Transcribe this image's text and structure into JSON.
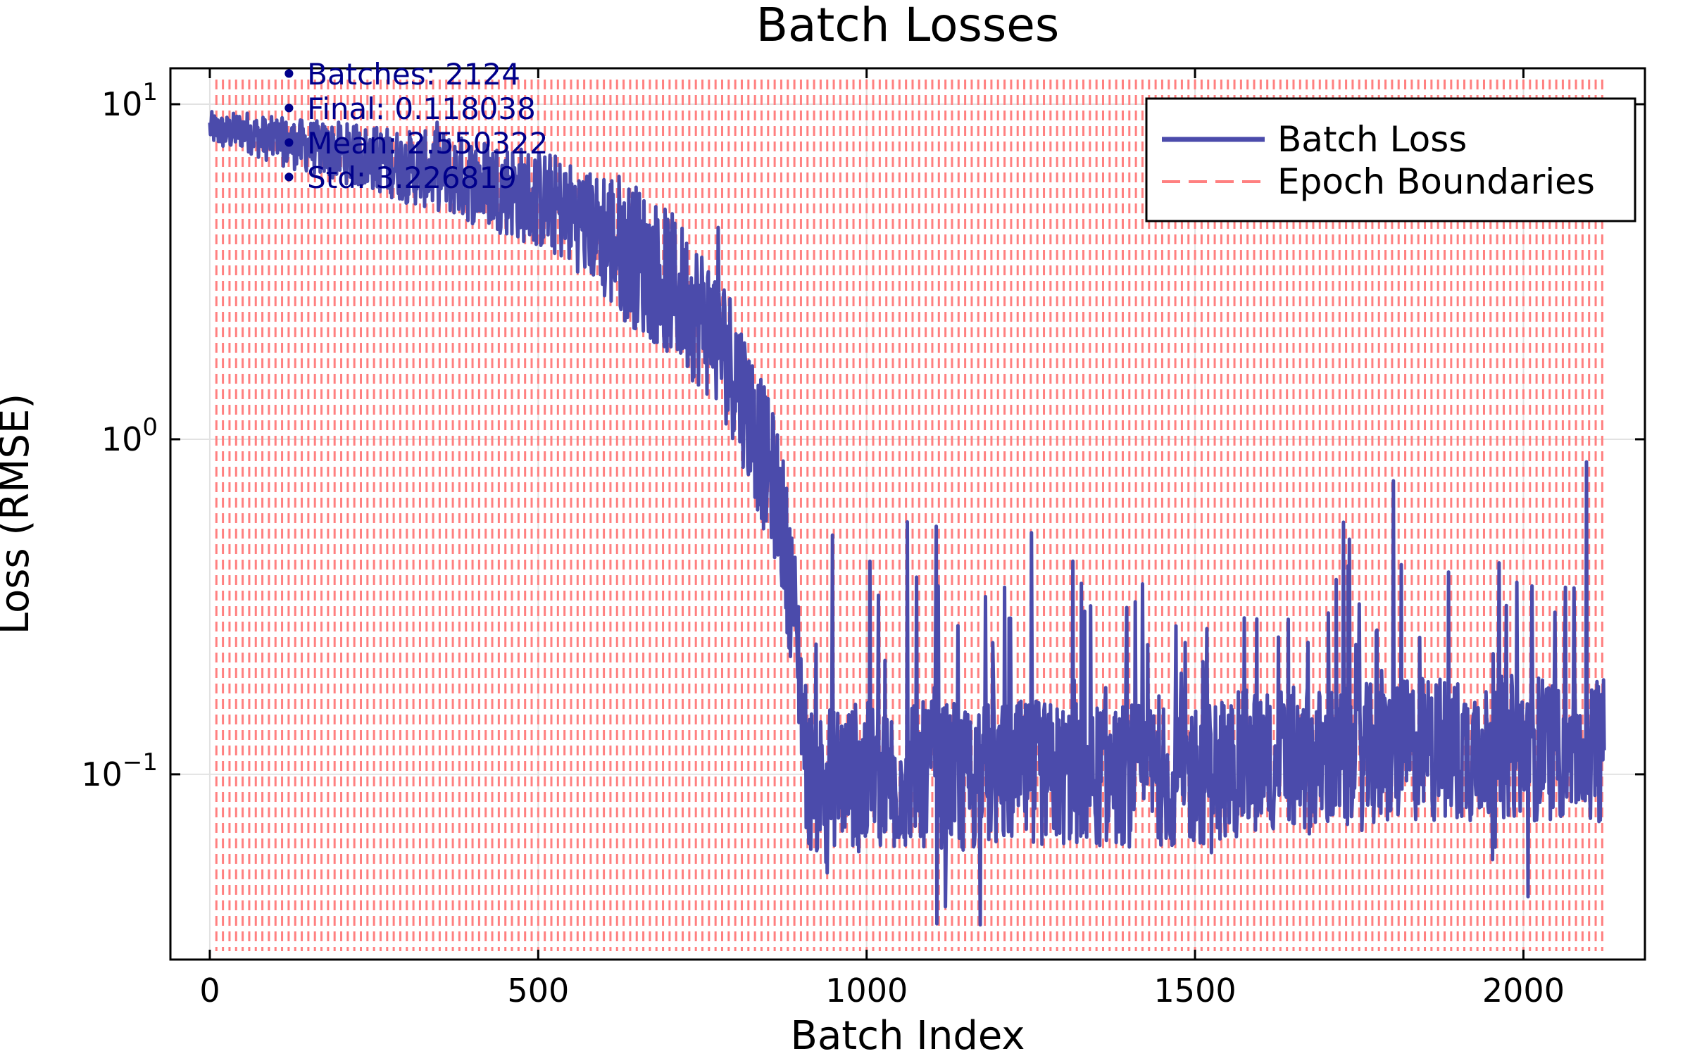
{
  "chart_data": {
    "type": "line",
    "title": "Batch Losses",
    "xlabel": "Batch Index",
    "ylabel": "Loss (RMSE)",
    "xlim": [
      -60,
      2185
    ],
    "ylim": [
      0.028,
      12.8
    ],
    "yscale": "log",
    "grid": true,
    "legend_position": "top-right",
    "x_ticks": [
      {
        "value": 0,
        "label": "0"
      },
      {
        "value": 500,
        "label": "500"
      },
      {
        "value": 1000,
        "label": "1000"
      },
      {
        "value": 1500,
        "label": "1500"
      },
      {
        "value": 2000,
        "label": "2000"
      }
    ],
    "y_ticks": [
      {
        "value": 10,
        "base": "10",
        "exp": "1"
      },
      {
        "value": 1,
        "base": "10",
        "exp": "0"
      },
      {
        "value": 0.1,
        "base": "10",
        "exp": "−1"
      }
    ],
    "series": [
      {
        "name": "Batch Loss",
        "color": "#4b4bab",
        "style": "solid",
        "total_points": 2124,
        "x": [
          0,
          25,
          50,
          75,
          100,
          125,
          150,
          175,
          200,
          225,
          250,
          275,
          300,
          325,
          350,
          375,
          400,
          425,
          450,
          475,
          500,
          525,
          550,
          575,
          600,
          625,
          650,
          675,
          700,
          725,
          750,
          775,
          800,
          825,
          850,
          860,
          870,
          875,
          880,
          885,
          890,
          895,
          900,
          905,
          910,
          920,
          950,
          1000,
          1050,
          1100,
          1150,
          1200,
          1250,
          1300,
          1350,
          1400,
          1450,
          1500,
          1550,
          1600,
          1650,
          1700,
          1750,
          1800,
          1850,
          1900,
          1950,
          2000,
          2050,
          2100,
          2123
        ],
        "y": [
          8.5,
          8.2,
          8.4,
          8.0,
          7.8,
          7.6,
          7.5,
          7.3,
          7.2,
          7.0,
          6.9,
          6.7,
          6.5,
          6.4,
          6.3,
          6.1,
          5.9,
          5.8,
          5.6,
          5.4,
          5.2,
          5.0,
          4.7,
          4.4,
          4.1,
          3.8,
          3.5,
          3.2,
          2.9,
          2.6,
          2.3,
          2.0,
          1.6,
          1.15,
          0.8,
          0.72,
          0.6,
          0.5,
          0.42,
          0.36,
          0.3,
          0.24,
          0.18,
          0.13,
          0.1,
          0.095,
          0.1,
          0.1,
          0.098,
          0.1,
          0.097,
          0.1,
          0.1,
          0.1,
          0.1,
          0.1,
          0.1,
          0.1,
          0.105,
          0.11,
          0.11,
          0.11,
          0.112,
          0.115,
          0.12,
          0.118,
          0.12,
          0.12,
          0.12,
          0.122,
          0.118038
        ]
      },
      {
        "name": "Epoch Boundaries",
        "color": "#ff8080",
        "style": "dashed",
        "spacing": 10,
        "x_start": 10,
        "x_end": 2120
      }
    ],
    "annotations": [
      "• Batches: 2124",
      "• Final: 0.118038",
      "• Mean: 2.550322",
      "• Std: 3.226819"
    ]
  }
}
